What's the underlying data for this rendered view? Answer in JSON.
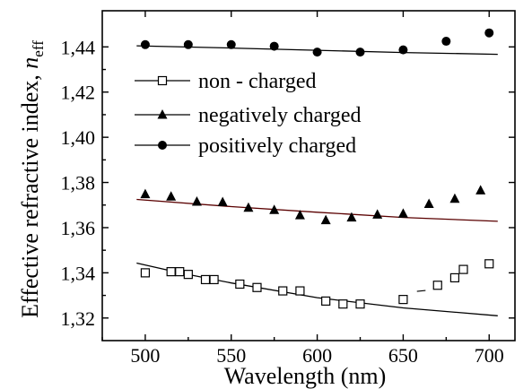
{
  "chart_data": {
    "type": "scatter",
    "xlabel": "Wavelength (nm)",
    "ylabel_main": "Effective refractive index, ",
    "ylabel_symbol": "n",
    "ylabel_subscript": "eff",
    "xlim": [
      475,
      715
    ],
    "ylim": [
      1.31,
      1.456
    ],
    "x_ticks": [
      500,
      550,
      600,
      650,
      700
    ],
    "x_tick_labels": [
      "500",
      "550",
      "600",
      "650",
      "700"
    ],
    "y_ticks": [
      1.32,
      1.34,
      1.36,
      1.38,
      1.4,
      1.42,
      1.44
    ],
    "y_tick_labels": [
      "1,32",
      "1,34",
      "1,36",
      "1,38",
      "1,40",
      "1,42",
      "1,44"
    ],
    "legend_position": "upper-left",
    "series": [
      {
        "name": "non - charged",
        "marker": "open-square",
        "color": "#000000",
        "points": [
          [
            500,
            1.34
          ],
          [
            515,
            1.3405
          ],
          [
            520,
            1.3405
          ],
          [
            525,
            1.3393
          ],
          [
            535,
            1.337
          ],
          [
            540,
            1.337
          ],
          [
            555,
            1.335
          ],
          [
            565,
            1.3335
          ],
          [
            580,
            1.332
          ],
          [
            590,
            1.332
          ],
          [
            605,
            1.3275
          ],
          [
            615,
            1.3262
          ],
          [
            625,
            1.3262
          ],
          [
            650,
            1.3282
          ],
          [
            670,
            1.3345
          ],
          [
            680,
            1.3378
          ],
          [
            685,
            1.3415
          ],
          [
            700,
            1.344
          ]
        ],
        "fit": [
          [
            495,
            1.3443
          ],
          [
            520,
            1.34
          ],
          [
            550,
            1.3355
          ],
          [
            600,
            1.329
          ],
          [
            650,
            1.3245
          ],
          [
            705,
            1.321
          ]
        ],
        "fit_color": "#000000"
      },
      {
        "name": "negatively charged",
        "marker": "filled-triangle",
        "color": "#000000",
        "points": [
          [
            500,
            1.3748
          ],
          [
            515,
            1.3738
          ],
          [
            530,
            1.3715
          ],
          [
            545,
            1.3713
          ],
          [
            560,
            1.3688
          ],
          [
            575,
            1.3678
          ],
          [
            590,
            1.3655
          ],
          [
            605,
            1.3633
          ],
          [
            620,
            1.3645
          ],
          [
            635,
            1.3658
          ],
          [
            650,
            1.3662
          ],
          [
            665,
            1.3705
          ],
          [
            680,
            1.3728
          ],
          [
            695,
            1.3765
          ]
        ],
        "fit": [
          [
            495,
            1.3725
          ],
          [
            550,
            1.3693
          ],
          [
            600,
            1.3668
          ],
          [
            650,
            1.3645
          ],
          [
            705,
            1.3628
          ]
        ],
        "fit_color": "#5a0000"
      },
      {
        "name": "positively charged",
        "marker": "filled-circle",
        "color": "#000000",
        "points": [
          [
            500,
            1.441
          ],
          [
            525,
            1.441
          ],
          [
            550,
            1.441
          ],
          [
            575,
            1.4403
          ],
          [
            600,
            1.4377
          ],
          [
            625,
            1.4377
          ],
          [
            650,
            1.4387
          ],
          [
            675,
            1.4425
          ],
          [
            700,
            1.4462
          ]
        ],
        "fit": [
          [
            495,
            1.4405
          ],
          [
            550,
            1.4395
          ],
          [
            600,
            1.4385
          ],
          [
            650,
            1.4375
          ],
          [
            705,
            1.4367
          ]
        ],
        "fit_color": "#000000"
      }
    ]
  }
}
